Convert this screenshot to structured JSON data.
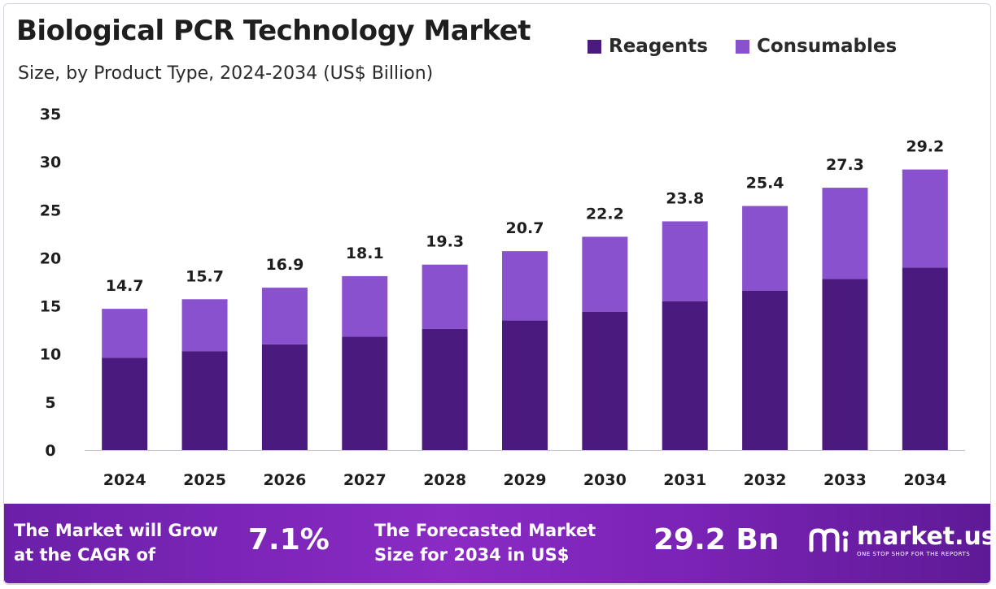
{
  "header": {
    "title": "Biological PCR Technology Market",
    "subtitle": "Size, by Product Type, 2024-2034 (US$ Billion)"
  },
  "legend": [
    {
      "label": "Reagents",
      "color": "#4b1a7e"
    },
    {
      "label": "Consumables",
      "color": "#8a51cf"
    }
  ],
  "chart_data": {
    "type": "bar",
    "stacked": true,
    "categories": [
      "2024",
      "2025",
      "2026",
      "2027",
      "2028",
      "2029",
      "2030",
      "2031",
      "2032",
      "2033",
      "2034"
    ],
    "series": [
      {
        "name": "Reagents",
        "color": "#4b1a7e",
        "values": [
          9.6,
          10.3,
          11.0,
          11.8,
          12.6,
          13.5,
          14.4,
          15.5,
          16.6,
          17.8,
          19.0
        ]
      },
      {
        "name": "Consumables",
        "color": "#8a51cf",
        "values": [
          5.1,
          5.4,
          5.9,
          6.3,
          6.7,
          7.2,
          7.8,
          8.3,
          8.8,
          9.5,
          10.2
        ]
      }
    ],
    "totals": [
      "14.7",
      "15.7",
      "16.9",
      "18.1",
      "19.3",
      "20.7",
      "22.2",
      "23.8",
      "25.4",
      "27.3",
      "29.2"
    ],
    "yticks": [
      0,
      5,
      10,
      15,
      20,
      25,
      30,
      35
    ],
    "ylim": [
      0,
      35
    ],
    "grid": false
  },
  "footer": {
    "cagr_text_line1": "The Market will Grow",
    "cagr_text_line2": "at the CAGR of",
    "cagr_value": "7.1%",
    "forecast_text_line1": "The Forecasted Market",
    "forecast_text_line2": "Size for 2034 in US$",
    "forecast_value": "29.2 Bn",
    "brand_name": "market.us",
    "brand_tagline": "ONE STOP SHOP FOR THE REPORTS"
  }
}
